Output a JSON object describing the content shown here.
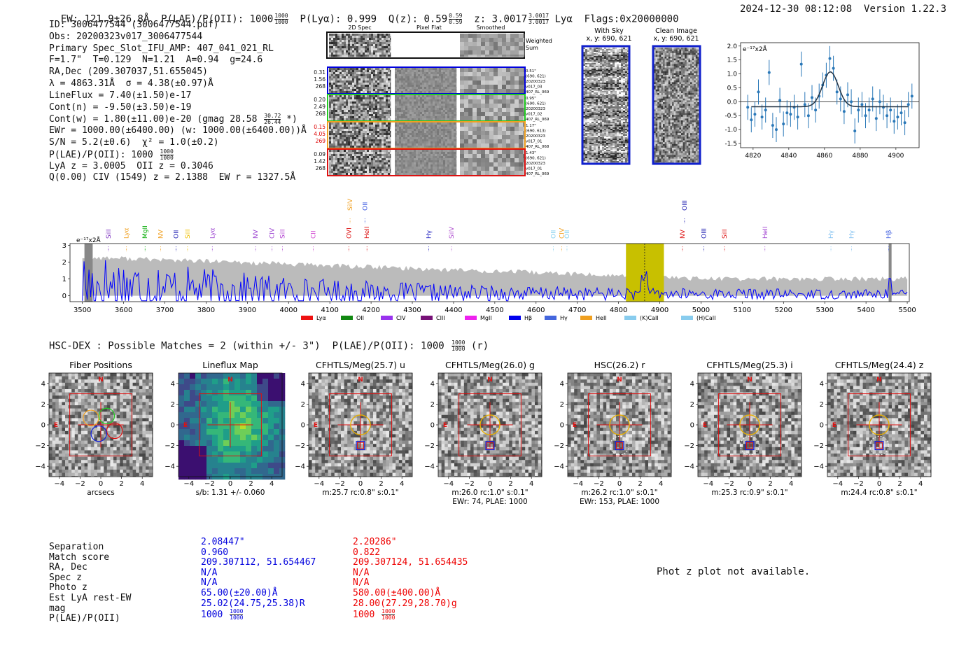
{
  "header": {
    "ew": "EW: 121.9±26.8Å",
    "plae_label": "P(LAE)/P(OII): 1000",
    "plae_hi": "1000",
    "plae_lo": "1000",
    "plya": "P(Lyα): 0.999",
    "qz_label": "Q(z): 0.59",
    "qz_hi": "0.59",
    "qz_lo": "0.59",
    "z_label": "z: 3.0017",
    "z_hi": "3.0017",
    "z_lo": "3.0017",
    "z_line": "Lyα",
    "flags": "Flags:0x20000000",
    "datetime": "2024-12-30 08:12:08",
    "version": "Version 1.22.3"
  },
  "info": {
    "id": "ID: 3006477544 (3006477544.pdf)",
    "obs": "Obs: 20200323v017_3006477544",
    "primary": "Primary Spec_Slot_IFU_AMP: 407_041_021_RL",
    "params": "F=1.7\"  T=0.129  N=1.21  A=0.94  g=24.6",
    "radec": "RA,Dec (209.307037,51.655045)",
    "lambda": "λ = 4863.31Å  σ = 4.38(±0.97)Å",
    "lineflux": "LineFlux = 7.40(±1.50)e-17",
    "contn": "Cont(n) = -9.50(±3.50)e-19",
    "contw": "Cont(w) = 1.80(±11.00)e-20 (gmag 28.58",
    "contw_hi": "30.72",
    "contw_lo": "26.44",
    "contw_tail": "*)",
    "ewr": "EWr = 1000.00(±6400.00) (w: 1000.00(±6400.00))Å",
    "sn": "S/N = 5.2(±0.6)  χ² = 1.0(±0.2)",
    "plae": "P(LAE)/P(OII): 1000",
    "plae_hi": "1000",
    "plae_lo": "1000",
    "lya_z": "LyA z = 3.0005  OII z = 0.3046",
    "civ": "Q(0.00) CIV (1549) z = 2.1388  EW r = 1327.5Å"
  },
  "cutouts": {
    "col_labels": [
      "2D Spec",
      "Pixel Flat",
      "Smoothed"
    ],
    "weighted": "Weighted Sum",
    "rows": [
      {
        "color": "#0000dd",
        "left": [
          "0.31",
          "1.56",
          "268"
        ],
        "left_colors": [
          "#111",
          "#111",
          "#111"
        ],
        "right": [
          "0.51\"",
          "(690, 621)",
          "20200323",
          "v017_03",
          "407_RL_069"
        ]
      },
      {
        "color": "#22cc22",
        "left": [
          "0.20",
          "2.49",
          "268"
        ],
        "left_colors": [
          "#111",
          "#111",
          "#111"
        ],
        "right": [
          "0.95\"",
          "(690, 621)",
          "20200323",
          "v017_02",
          "407_RL_069"
        ]
      },
      {
        "color": "#f0a020",
        "left": [
          "0.15",
          "4.05",
          "269"
        ],
        "left_colors": [
          "#dd0000",
          "#dd0000",
          "#dd0000"
        ],
        "right": [
          "1.17\"",
          "(690, 613)",
          "20200323",
          "v017_01",
          "407_RL_068"
        ]
      },
      {
        "color": "#dd1111",
        "left": [
          "0.09",
          "1.42",
          "268"
        ],
        "left_colors": [
          "#111",
          "#111",
          "#111"
        ],
        "right": [
          "1.43\"",
          "(690, 621)",
          "20200323",
          "v017_01",
          "407_RL_069"
        ]
      }
    ],
    "with_sky_title": "With Sky",
    "with_sky_sub": "x, y: 690, 621",
    "clean_title": "Clean Image",
    "clean_sub": "x, y: 690, 621"
  },
  "zoom_plot": {
    "ylabel": "e⁻¹⁷x2Å",
    "x_ticks": [
      4820,
      4840,
      4860,
      4880,
      4900
    ],
    "y_ticks": [
      -1.5,
      -1.0,
      -0.5,
      0.0,
      0.5,
      1.0,
      1.5,
      2.0
    ],
    "xlim": [
      4813,
      4913
    ],
    "ylim": [
      -1.65,
      2.12
    ],
    "gauss": {
      "center": 4863.31,
      "sigma": 4.38,
      "amp": 1.25,
      "base": -0.18
    },
    "points_x": [
      4817,
      4819,
      4821,
      4823,
      4825,
      4827,
      4829,
      4831,
      4833,
      4835,
      4837,
      4839,
      4841,
      4843,
      4845,
      4847,
      4849,
      4851,
      4853,
      4855,
      4857,
      4859,
      4861,
      4863,
      4865,
      4867,
      4869,
      4871,
      4873,
      4875,
      4877,
      4879,
      4881,
      4883,
      4885,
      4887,
      4889,
      4891,
      4893,
      4895,
      4897,
      4899,
      4901,
      4903,
      4905,
      4907,
      4909
    ],
    "points_y": [
      -0.2,
      -0.65,
      -0.45,
      0.35,
      -0.55,
      -0.3,
      1.05,
      -0.85,
      -1.0,
      0.05,
      -0.8,
      -0.4,
      -0.45,
      -0.2,
      -0.55,
      1.35,
      -0.1,
      -0.5,
      0.15,
      -0.3,
      0.2,
      0.6,
      0.95,
      1.55,
      1.2,
      0.35,
      0.1,
      -0.35,
      0.25,
      0.0,
      -1.05,
      -0.3,
      -0.1,
      -0.5,
      -0.3,
      0.1,
      -0.6,
      0.0,
      -0.2,
      -0.5,
      -0.3,
      -0.7,
      -0.55,
      -0.4,
      -0.75,
      -0.1,
      0.2
    ],
    "err": 0.45
  },
  "chart_data": {
    "type": "line",
    "title": "",
    "xlabel": "",
    "ylabel": "e⁻¹⁷x2Å",
    "xlim": [
      3470,
      5505
    ],
    "ylim": [
      -0.35,
      3.1
    ],
    "x_ticks": [
      3500,
      3600,
      3700,
      3800,
      3900,
      4000,
      4100,
      4200,
      4300,
      4400,
      4500,
      4600,
      4700,
      4800,
      4900,
      5000,
      5100,
      5200,
      5300,
      5400,
      5500
    ],
    "y_ticks": [
      0,
      1,
      2,
      3
    ],
    "highlight_band": [
      4818,
      4910
    ],
    "line_center": 4863.31,
    "masked_bands": [
      [
        3505,
        3525
      ],
      [
        5455,
        5462
      ]
    ],
    "series": [
      {
        "name": "spectrum",
        "color": "#0000ff",
        "x_start": 3500,
        "x_step": 4,
        "seed": 17
      },
      {
        "name": "error",
        "color": "#bbbbbb",
        "start_level": 2.3,
        "end_level": 1.0
      }
    ],
    "line_markers": [
      {
        "label": "SiII",
        "color": "#7b2fbf",
        "x": 3563,
        "tier": 1
      },
      {
        "label": "Lyα",
        "color": "#f0a020",
        "x": 3607,
        "tier": 1
      },
      {
        "label": "MgII",
        "color": "#00aa00",
        "x": 3652,
        "tier": 1
      },
      {
        "label": "NV",
        "color": "#f0a020",
        "x": 3690,
        "tier": 1
      },
      {
        "label": "OII",
        "color": "#1a1ab0",
        "x": 3727,
        "tier": 1
      },
      {
        "label": "SiII",
        "color": "#f0c000",
        "x": 3755,
        "tier": 1
      },
      {
        "label": "Lyα",
        "color": "#9a40d0",
        "x": 3815,
        "tier": 1
      },
      {
        "label": "NV",
        "color": "#9a40d0",
        "x": 3920,
        "tier": 1
      },
      {
        "label": "CIV",
        "color": "#9a40d0",
        "x": 3960,
        "tier": 1
      },
      {
        "label": "SiII",
        "color": "#b040d0",
        "x": 3985,
        "tier": 1
      },
      {
        "label": "CII",
        "color": "#d040d0",
        "x": 4060,
        "tier": 1
      },
      {
        "label": "OVI",
        "color": "#dd1111",
        "x": 4146,
        "tier": 1
      },
      {
        "label": "HeII",
        "color": "#dd1111",
        "x": 4190,
        "tier": 1
      },
      {
        "label": "SiIV",
        "color": "#f0a020",
        "x": 4149,
        "tier": 2
      },
      {
        "label": "OII",
        "color": "#3050e0",
        "x": 4185,
        "tier": 2
      },
      {
        "label": "Hγ",
        "color": "#2020c0",
        "x": 4340,
        "tier": 1
      },
      {
        "label": "SiIV",
        "color": "#b050d0",
        "x": 4395,
        "tier": 1
      },
      {
        "label": "OII",
        "color": "#80d0f0",
        "x": 4642,
        "tier": 1
      },
      {
        "label": "CIV",
        "color": "#f0a020",
        "x": 4662,
        "tier": 1
      },
      {
        "label": "OII",
        "color": "#80d0f0",
        "x": 4675,
        "tier": 1
      },
      {
        "label": "NV",
        "color": "#dd1111",
        "x": 4955,
        "tier": 1
      },
      {
        "label": "OIII",
        "color": "#1a1ab0",
        "x": 5007,
        "tier": 1
      },
      {
        "label": "SiII",
        "color": "#dd1111",
        "x": 5057,
        "tier": 1
      },
      {
        "label": "HeII",
        "color": "#a040d0",
        "x": 5155,
        "tier": 1
      },
      {
        "label": "OIII",
        "color": "#1a1ab0",
        "x": 4960,
        "tier": 2
      },
      {
        "label": "Hγ",
        "color": "#80c0f0",
        "x": 5315,
        "tier": 1
      },
      {
        "label": "Hγ",
        "color": "#80c0f0",
        "x": 5365,
        "tier": 1
      },
      {
        "label": "Hβ",
        "color": "#4060e0",
        "x": 5455,
        "tier": 1
      }
    ],
    "legend": [
      {
        "label": "Lyα",
        "color": "#ee1111"
      },
      {
        "label": "OII",
        "color": "#118811"
      },
      {
        "label": "CIV",
        "color": "#9933ee"
      },
      {
        "label": "CIII",
        "color": "#771177"
      },
      {
        "label": "MgII",
        "color": "#ee22ee"
      },
      {
        "label": "Hβ",
        "color": "#0000ee"
      },
      {
        "label": "Hγ",
        "color": "#4466dd"
      },
      {
        "label": "HeII",
        "color": "#f0a020"
      },
      {
        "label": "(K)CaII",
        "color": "#88ccee"
      },
      {
        "label": "(H)CaII",
        "color": "#88ccee"
      }
    ]
  },
  "hsc": {
    "title": "HSC-DEX : Possible Matches = 2 (within +/- 3\")  P(LAE)/P(OII): 1000",
    "title_hi": "1000",
    "title_lo": "1000",
    "title_tail": "(r)",
    "panels": [
      {
        "title": "Fiber Positions",
        "caption1": "arcsecs",
        "caption2": "",
        "kind": "fiber"
      },
      {
        "title": "Lineflux Map",
        "caption1": "s/b: 1.31 +/- 0.060",
        "caption2": "",
        "kind": "flux"
      },
      {
        "title": "CFHTLS/Meg(25.7) u",
        "caption1": "m:25.7 rc:0.8\"  s:0.1\"",
        "caption2": "",
        "kind": "img"
      },
      {
        "title": "CFHTLS/Meg(26.0) g",
        "caption1": "m:26.0 rc:1.0\"  s:0.1\"",
        "caption2": "EWr: 74, PLAE: 1000",
        "kind": "img"
      },
      {
        "title": "HSC(26.2) r",
        "caption1": "m:26.2 rc:1.0\"  s:0.1\"",
        "caption2": "EWr: 153, PLAE: 1000",
        "kind": "img"
      },
      {
        "title": "CFHTLS/Meg(25.3) i",
        "caption1": "m:25.3 rc:0.9\"  s:0.1\"",
        "caption2": "",
        "kind": "img"
      },
      {
        "title": "CFHTLS/Meg(24.4) z",
        "caption1": "m:24.4 rc:0.8\"  s:0.1\"",
        "caption2": "",
        "kind": "img"
      }
    ],
    "axis_ticks": [
      -4,
      -2,
      0,
      2,
      4
    ],
    "north": "N",
    "east": "E"
  },
  "matches": {
    "labels": [
      "Separation",
      "Match score",
      "RA, Dec",
      "Spec z",
      "Photo z",
      "Est LyA rest-EW",
      "mag",
      "P(LAE)/P(OII)"
    ],
    "blue": {
      "color": "#0000dd",
      "values": [
        "2.08447\"",
        "0.960",
        "209.307112, 51.654467",
        "N/A",
        "N/A",
        "65.00(±20.00)Å",
        "25.02(24.75,25.38)R",
        "1000"
      ],
      "plae_hi": "1000",
      "plae_lo": "1000"
    },
    "red": {
      "color": "#ee0000",
      "values": [
        "2.20286\"",
        "0.822",
        "209.307124, 51.654435",
        "N/A",
        "N/A",
        "580.00(±400.00)Å",
        "28.00(27.29,28.70)g",
        "1000"
      ],
      "plae_hi": "1000",
      "plae_lo": "1000"
    }
  },
  "phot_z": "Phot z plot not available."
}
